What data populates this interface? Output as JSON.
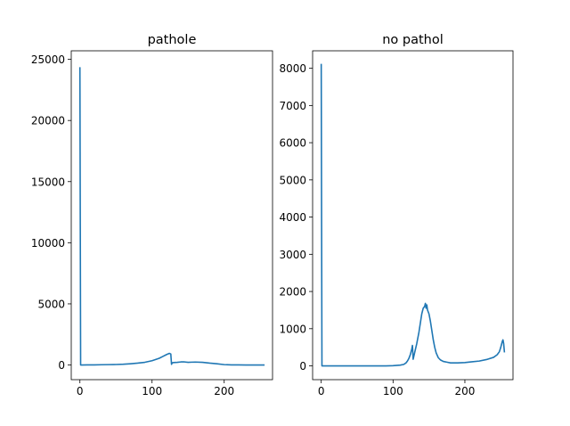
{
  "chart_data": [
    {
      "type": "line",
      "title": "pathole",
      "xlabel": "",
      "ylabel": "",
      "xlim": [
        -12,
        267
      ],
      "ylim": [
        -1200,
        25700
      ],
      "xticks": [
        0,
        100,
        200
      ],
      "yticks": [
        0,
        5000,
        10000,
        15000,
        20000,
        25000
      ],
      "grid": false,
      "color": "#1f77b4",
      "series": [
        {
          "x": [
            0,
            1,
            2,
            10,
            20,
            30,
            40,
            50,
            60,
            70,
            80,
            90,
            100,
            105,
            110,
            115,
            120,
            124,
            126,
            127,
            128,
            130,
            135,
            140,
            145,
            150,
            155,
            160,
            170,
            180,
            190,
            200,
            210,
            220,
            230,
            240,
            255
          ],
          "y": [
            24300,
            0,
            0,
            5,
            10,
            20,
            30,
            40,
            60,
            100,
            150,
            220,
            350,
            450,
            550,
            700,
            850,
            950,
            900,
            50,
            180,
            200,
            220,
            250,
            250,
            220,
            230,
            240,
            220,
            150,
            100,
            30,
            10,
            5,
            0,
            0,
            0
          ]
        }
      ]
    },
    {
      "type": "line",
      "title": "no pathol",
      "xlabel": "",
      "ylabel": "",
      "xlim": [
        -12,
        267
      ],
      "ylim": [
        -370,
        8470
      ],
      "xticks": [
        0,
        100,
        200
      ],
      "yticks": [
        0,
        1000,
        2000,
        3000,
        4000,
        5000,
        6000,
        7000,
        8000
      ],
      "grid": false,
      "color": "#1f77b4",
      "series": [
        {
          "x": [
            0,
            1,
            2,
            20,
            50,
            90,
            100,
            110,
            115,
            118,
            120,
            122,
            124,
            126,
            127,
            128,
            130,
            133,
            136,
            138,
            140,
            142,
            144,
            145,
            146,
            147,
            148,
            150,
            152,
            154,
            156,
            158,
            160,
            163,
            166,
            170,
            175,
            180,
            190,
            200,
            210,
            220,
            230,
            240,
            245,
            248,
            250,
            252,
            253,
            254,
            255
          ],
          "y": [
            8100,
            0,
            0,
            0,
            0,
            0,
            5,
            20,
            40,
            80,
            130,
            200,
            300,
            450,
            550,
            180,
            350,
            600,
            900,
            1150,
            1400,
            1550,
            1600,
            1680,
            1550,
            1640,
            1500,
            1400,
            1200,
            950,
            700,
            500,
            350,
            220,
            160,
            120,
            100,
            80,
            80,
            90,
            110,
            130,
            170,
            230,
            300,
            380,
            500,
            650,
            700,
            600,
            380
          ]
        }
      ]
    }
  ]
}
